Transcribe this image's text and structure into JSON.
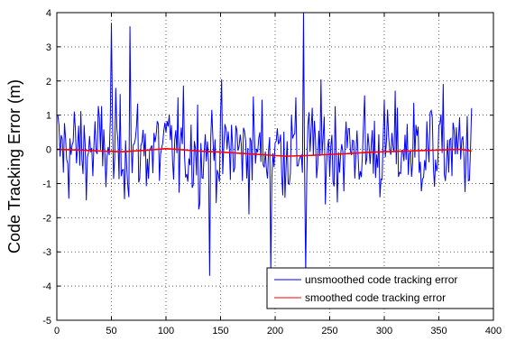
{
  "chart_data": {
    "type": "line",
    "title": "",
    "xlabel": "",
    "ylabel": "Code Tracking Error (m)",
    "xlim": [
      0,
      400
    ],
    "ylim": [
      -5,
      4
    ],
    "xticks": [
      "0",
      "50",
      "100",
      "150",
      "200",
      "250",
      "300",
      "350",
      "400"
    ],
    "yticks": [
      "4",
      "3",
      "2",
      "1",
      "0",
      "-1",
      "-2",
      "-3",
      "-4",
      "-5"
    ],
    "grid": "dotted",
    "legend_position": "bottom-right",
    "series": [
      {
        "name": "unsmoothed code tracking error",
        "color": "#0000ff",
        "x_start": 1,
        "x_end": 380,
        "peaks": [
          {
            "x": 50,
            "y": 3.7
          },
          {
            "x": 67,
            "y": 3.6
          },
          {
            "x": 226,
            "y": 4.0
          },
          {
            "x": 140,
            "y": -3.7
          },
          {
            "x": 196,
            "y": -3.6
          },
          {
            "x": 228,
            "y": -3.6
          }
        ],
        "note_range": [
          -3.7,
          4.0
        ]
      },
      {
        "name": "smoothed code tracking error",
        "color": "#ff0000",
        "x": [
          0,
          20,
          40,
          60,
          80,
          100,
          110,
          130,
          150,
          170,
          190,
          210,
          230,
          250,
          270,
          290,
          310,
          330,
          350,
          370,
          380
        ],
        "y": [
          0.0,
          -0.02,
          -0.05,
          -0.07,
          -0.03,
          0.02,
          0.0,
          -0.05,
          -0.08,
          -0.12,
          -0.16,
          -0.2,
          -0.18,
          -0.15,
          -0.12,
          -0.08,
          -0.06,
          -0.04,
          -0.02,
          0.0,
          -0.05
        ]
      }
    ]
  }
}
